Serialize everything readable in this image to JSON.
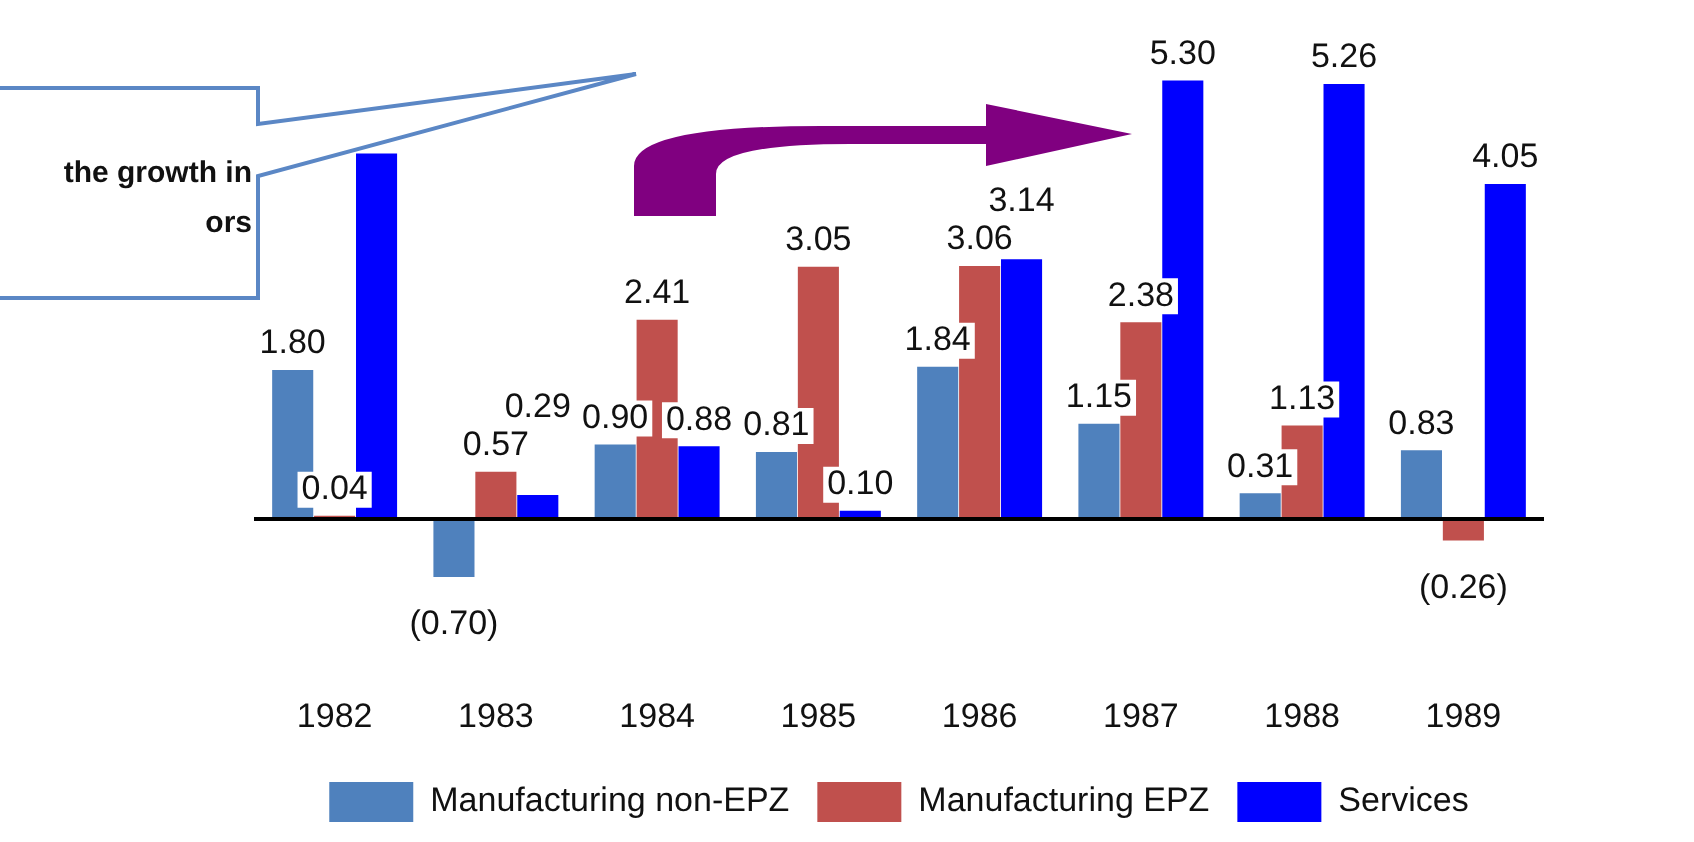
{
  "chart_data": {
    "type": "bar",
    "categories": [
      "1982",
      "1983",
      "1984",
      "1985",
      "1986",
      "1987",
      "1988",
      "1989"
    ],
    "series": [
      {
        "name": "Manufacturing non-EPZ",
        "color": "#4f81bd",
        "values": [
          1.8,
          -0.7,
          0.9,
          0.81,
          1.84,
          1.15,
          0.31,
          0.83
        ],
        "value_labels": [
          "1.80",
          "(0.70)",
          "0.90",
          "0.81",
          "1.84",
          "1.15",
          "0.31",
          "0.83"
        ]
      },
      {
        "name": "Manufacturing EPZ",
        "color": "#c0504d",
        "values": [
          0.04,
          0.57,
          2.41,
          3.05,
          3.06,
          2.38,
          1.13,
          -0.26
        ],
        "value_labels": [
          "0.04",
          "0.57",
          "2.41",
          "3.05",
          "3.06",
          "2.38",
          "1.13",
          "(0.26)"
        ]
      },
      {
        "name": "Services",
        "color": "#0000ff",
        "values": [
          4.42,
          0.29,
          0.88,
          0.1,
          3.14,
          5.3,
          5.26,
          4.05
        ],
        "value_labels": [
          null,
          "0.29",
          "0.88",
          "0.10",
          "3.14",
          "5.30",
          "5.26",
          "4.05"
        ]
      }
    ],
    "annotations": [
      "the growth in\nors"
    ],
    "legend": "bottom",
    "grid": false
  }
}
